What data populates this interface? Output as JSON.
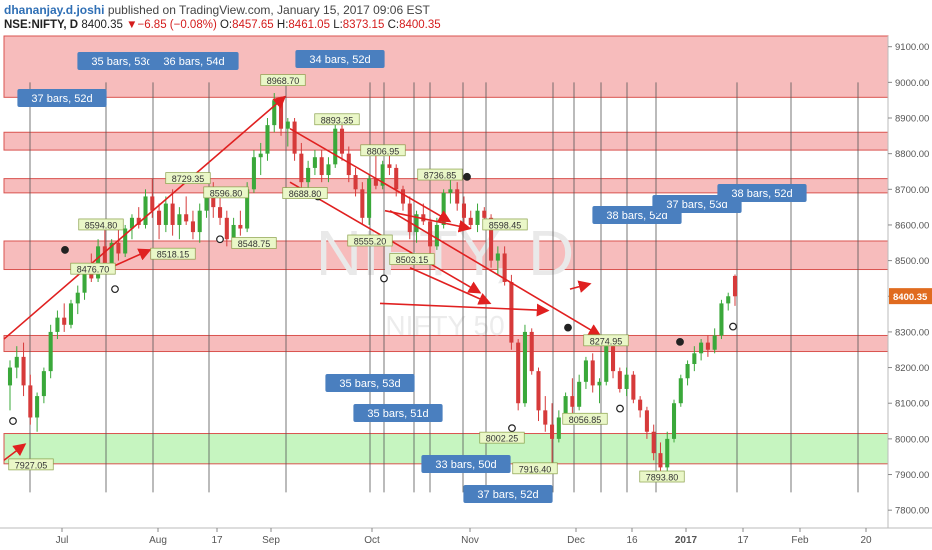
{
  "header": {
    "author": "dhananjay.d.joshi",
    "published": "published on TradingView.com, January 15, 2017 09:06 EST",
    "symbol": "NSE:NIFTY, D",
    "last": "8400.35",
    "change_arrow": "▼",
    "change": "−6.85 (−0.08%)",
    "o_label": "O:",
    "o": "8457.65",
    "h_label": "H:",
    "h": "8461.05",
    "l_label": "L:",
    "l": "8373.15",
    "c_label": "C:",
    "c": "8400.35"
  },
  "watermark": {
    "symbol": "NIFTY, D",
    "name": "NIFTY 50"
  },
  "colors": {
    "up": "#3aa83a",
    "down": "#d63a3a",
    "resistance_zone": "#f7bcbc",
    "support_zone": "#c6f5c0",
    "label_blue": "#4a7fbf",
    "price_tag": "#e06b1f"
  },
  "chart_data": {
    "type": "candlestick",
    "title": "NSE:NIFTY, D",
    "ylim": [
      7750,
      9130
    ],
    "y_ticks": [
      7800,
      7900,
      8000,
      8100,
      8200,
      8300,
      8400,
      8500,
      8600,
      8700,
      8800,
      8900,
      9000,
      9100
    ],
    "y_tick_labels": [
      "7800.00",
      "7900.00",
      "8000.00",
      "8100.00",
      "8200.00",
      "8300.00",
      "8400.00",
      "8500.00",
      "8600.00",
      "8700.00",
      "8800.00",
      "8900.00",
      "9000.00",
      "9100.00"
    ],
    "x_ticks": [
      "Jul",
      "Aug",
      "17",
      "Sep",
      "Oct",
      "Nov",
      "Dec",
      "16",
      "2017",
      "17",
      "Feb",
      "20"
    ],
    "last_price": "8400.35",
    "zones": [
      {
        "kind": "resistance",
        "from": 8958,
        "to": 9130
      },
      {
        "kind": "resistance",
        "from": 8810,
        "to": 8860
      },
      {
        "kind": "resistance",
        "from": 8690,
        "to": 8730
      },
      {
        "kind": "resistance",
        "from": 8475,
        "to": 8555
      },
      {
        "kind": "resistance",
        "from": 8245,
        "to": 8290
      },
      {
        "kind": "support",
        "from": 7930,
        "to": 8015
      }
    ],
    "price_labels": [
      "8968.70",
      "8893.35",
      "8806.95",
      "8736.85",
      "8729.35",
      "8596.80",
      "8594.80",
      "8598.45",
      "8555.20",
      "8548.75",
      "8518.15",
      "8503.15",
      "8476.70",
      "8688.80",
      "8274.95",
      "8056.85",
      "8002.25",
      "7916.40",
      "7927.05",
      "7893.80"
    ],
    "cycle_labels": [
      "35 bars, 53d",
      "36 bars, 54d",
      "34 bars, 52d",
      "37 bars, 52d",
      "35 bars, 53d",
      "35 bars, 51d",
      "33 bars, 50d",
      "37 bars, 52d",
      "38 bars, 52d",
      "37 bars, 53d",
      "38 bars, 52d"
    ],
    "candles_note": "Daily OHLC, Jun 2016 – Jan 13 2017",
    "candles": [
      [
        8150,
        8220,
        8080,
        8200
      ],
      [
        8200,
        8260,
        8170,
        8230
      ],
      [
        8230,
        8270,
        8120,
        8150
      ],
      [
        8150,
        8180,
        8040,
        8060
      ],
      [
        8060,
        8130,
        8020,
        8120
      ],
      [
        8120,
        8200,
        8100,
        8190
      ],
      [
        8190,
        8320,
        8170,
        8300
      ],
      [
        8300,
        8360,
        8280,
        8340
      ],
      [
        8340,
        8380,
        8300,
        8320
      ],
      [
        8320,
        8390,
        8310,
        8380
      ],
      [
        8380,
        8430,
        8350,
        8410
      ],
      [
        8410,
        8480,
        8390,
        8470
      ],
      [
        8470,
        8520,
        8440,
        8450
      ],
      [
        8450,
        8560,
        8440,
        8540
      ],
      [
        8540,
        8590,
        8470,
        8490
      ],
      [
        8490,
        8560,
        8470,
        8550
      ],
      [
        8550,
        8590,
        8500,
        8520
      ],
      [
        8520,
        8600,
        8510,
        8590
      ],
      [
        8590,
        8630,
        8560,
        8620
      ],
      [
        8620,
        8650,
        8590,
        8600
      ],
      [
        8600,
        8700,
        8590,
        8680
      ],
      [
        8680,
        8730,
        8620,
        8640
      ],
      [
        8640,
        8660,
        8560,
        8600
      ],
      [
        8600,
        8680,
        8580,
        8660
      ],
      [
        8660,
        8700,
        8570,
        8600
      ],
      [
        8600,
        8650,
        8560,
        8630
      ],
      [
        8630,
        8680,
        8600,
        8610
      ],
      [
        8610,
        8640,
        8560,
        8580
      ],
      [
        8580,
        8660,
        8550,
        8640
      ],
      [
        8640,
        8700,
        8620,
        8690
      ],
      [
        8690,
        8720,
        8620,
        8650
      ],
      [
        8650,
        8700,
        8600,
        8620
      ],
      [
        8620,
        8640,
        8540,
        8560
      ],
      [
        8560,
        8620,
        8550,
        8600
      ],
      [
        8600,
        8640,
        8570,
        8590
      ],
      [
        8590,
        8720,
        8580,
        8700
      ],
      [
        8700,
        8810,
        8690,
        8790
      ],
      [
        8790,
        8830,
        8740,
        8800
      ],
      [
        8800,
        8900,
        8780,
        8880
      ],
      [
        8880,
        8970,
        8860,
        8950
      ],
      [
        8950,
        8960,
        8850,
        8870
      ],
      [
        8870,
        8900,
        8820,
        8890
      ],
      [
        8890,
        8900,
        8780,
        8800
      ],
      [
        8800,
        8830,
        8700,
        8720
      ],
      [
        8720,
        8780,
        8690,
        8760
      ],
      [
        8760,
        8810,
        8740,
        8790
      ],
      [
        8790,
        8810,
        8720,
        8740
      ],
      [
        8740,
        8790,
        8720,
        8770
      ],
      [
        8770,
        8893,
        8760,
        8870
      ],
      [
        8870,
        8880,
        8780,
        8800
      ],
      [
        8800,
        8820,
        8720,
        8740
      ],
      [
        8740,
        8760,
        8680,
        8700
      ],
      [
        8700,
        8720,
        8600,
        8620
      ],
      [
        8620,
        8740,
        8600,
        8730
      ],
      [
        8730,
        8800,
        8700,
        8710
      ],
      [
        8710,
        8780,
        8700,
        8770
      ],
      [
        8770,
        8806,
        8740,
        8760
      ],
      [
        8760,
        8770,
        8680,
        8700
      ],
      [
        8700,
        8710,
        8640,
        8660
      ],
      [
        8660,
        8680,
        8560,
        8580
      ],
      [
        8580,
        8640,
        8550,
        8630
      ],
      [
        8630,
        8660,
        8600,
        8610
      ],
      [
        8610,
        8620,
        8520,
        8540
      ],
      [
        8540,
        8620,
        8530,
        8600
      ],
      [
        8600,
        8700,
        8590,
        8690
      ],
      [
        8690,
        8736,
        8660,
        8700
      ],
      [
        8700,
        8720,
        8640,
        8660
      ],
      [
        8660,
        8680,
        8600,
        8620
      ],
      [
        8620,
        8640,
        8590,
        8600
      ],
      [
        8600,
        8660,
        8580,
        8640
      ],
      [
        8640,
        8650,
        8600,
        8620
      ],
      [
        8620,
        8630,
        8480,
        8500
      ],
      [
        8500,
        8540,
        8460,
        8520
      ],
      [
        8520,
        8540,
        8430,
        8440
      ],
      [
        8440,
        8460,
        8250,
        8270
      ],
      [
        8270,
        8280,
        8080,
        8100
      ],
      [
        8100,
        8320,
        8090,
        8300
      ],
      [
        8300,
        8310,
        8180,
        8190
      ],
      [
        8190,
        8200,
        8050,
        8080
      ],
      [
        8080,
        8120,
        8020,
        8040
      ],
      [
        8040,
        8100,
        7920,
        8000
      ],
      [
        8000,
        8080,
        7990,
        8060
      ],
      [
        8060,
        8130,
        8050,
        8120
      ],
      [
        8120,
        8170,
        8070,
        8090
      ],
      [
        8090,
        8180,
        8080,
        8160
      ],
      [
        8160,
        8230,
        8140,
        8220
      ],
      [
        8220,
        8240,
        8130,
        8150
      ],
      [
        8150,
        8170,
        8100,
        8160
      ],
      [
        8160,
        8280,
        8150,
        8260
      ],
      [
        8260,
        8275,
        8170,
        8190
      ],
      [
        8190,
        8200,
        8130,
        8140
      ],
      [
        8140,
        8200,
        8120,
        8180
      ],
      [
        8180,
        8190,
        8100,
        8110
      ],
      [
        8110,
        8120,
        8060,
        8080
      ],
      [
        8080,
        8090,
        8000,
        8020
      ],
      [
        8020,
        8040,
        7940,
        7960
      ],
      [
        7960,
        7990,
        7893,
        7920
      ],
      [
        7920,
        8020,
        7910,
        8000
      ],
      [
        8000,
        8110,
        7990,
        8100
      ],
      [
        8100,
        8180,
        8090,
        8170
      ],
      [
        8170,
        8220,
        8150,
        8210
      ],
      [
        8210,
        8260,
        8190,
        8240
      ],
      [
        8240,
        8280,
        8220,
        8270
      ],
      [
        8270,
        8290,
        8230,
        8250
      ],
      [
        8250,
        8310,
        8240,
        8290
      ],
      [
        8290,
        8390,
        8280,
        8380
      ],
      [
        8380,
        8410,
        8360,
        8400
      ],
      [
        8457,
        8461,
        8373,
        8400
      ]
    ]
  }
}
